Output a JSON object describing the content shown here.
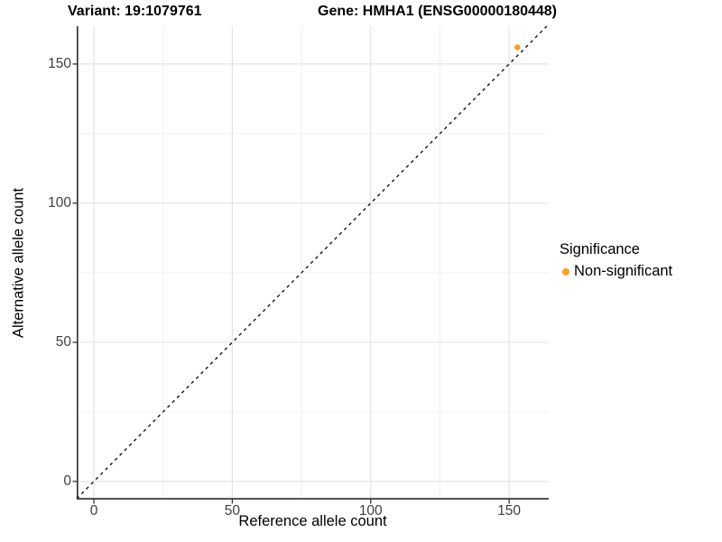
{
  "figure": {
    "title_left": "Variant: 19:1079761",
    "title_right": "Gene: HMHA1 (ENSG00000180448)"
  },
  "legend": {
    "title": "Significance",
    "items": [
      {
        "label": "Non-significant",
        "color": "#F9A02B"
      }
    ]
  },
  "chart_data": {
    "type": "scatter",
    "title_left": "Variant: 19:1079761",
    "title_right": "Gene: HMHA1 (ENSG00000180448)",
    "xlabel": "Reference allele count",
    "ylabel": "Alternative allele count",
    "xlim": [
      -6.2,
      164.3
    ],
    "ylim": [
      -6.5,
      163.6
    ],
    "x_ticks": [
      0,
      50,
      100,
      150
    ],
    "y_ticks": [
      0,
      50,
      100,
      150
    ],
    "x_minor": [
      25,
      75,
      125
    ],
    "y_minor": [
      25,
      75,
      125
    ],
    "grid": "major+minor",
    "legend_position": "right",
    "series": [
      {
        "name": "Non-significant",
        "color": "#F9A02B",
        "points": [
          {
            "x": 153,
            "y": 156
          }
        ]
      }
    ],
    "reference_line": {
      "type": "identity y=x",
      "style": "dashed",
      "color": "#121212"
    }
  },
  "colors": {
    "background": "#FFFFFF",
    "grid_major": "#E3E3E3",
    "grid_minor": "#F0F0F0",
    "axis_line": "#2A2A2A",
    "tick_mark": "#333333",
    "tick_text": "#3F3F3F",
    "point": "#F9A02B"
  }
}
